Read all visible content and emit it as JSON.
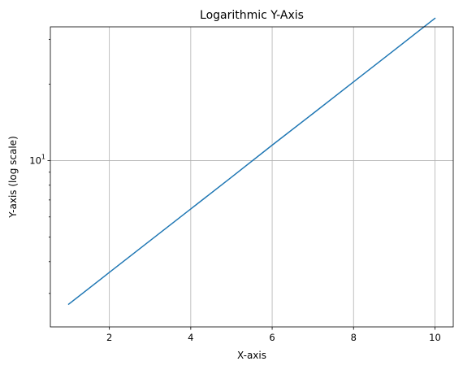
{
  "chart_data": {
    "type": "line",
    "title": "Logarithmic Y-Axis",
    "xlabel": "X-axis",
    "ylabel": "Y-axis (log scale)",
    "xlim": [
      0.55,
      10.45
    ],
    "ylim": [
      2.215,
      33.6
    ],
    "y_scale": "log",
    "grid": true,
    "x_ticks": [
      {
        "value": 2,
        "label": "2"
      },
      {
        "value": 4,
        "label": "4"
      },
      {
        "value": 6,
        "label": "6"
      },
      {
        "value": 8,
        "label": "8"
      },
      {
        "value": 10,
        "label": "10"
      }
    ],
    "y_major_ticks": [
      {
        "value": 10,
        "base": "10",
        "exponent": "1"
      }
    ],
    "y_minor_ticks": [
      3,
      4,
      5,
      6,
      7,
      8,
      9,
      20,
      30
    ],
    "series": [
      {
        "color": "#1f77b4",
        "x": [
          1,
          2,
          3,
          4,
          5,
          6,
          7,
          8,
          9,
          10
        ],
        "y": [
          2.72,
          3.63,
          4.84,
          6.45,
          8.6,
          11.5,
          15.3,
          20.4,
          27.2,
          36.3
        ]
      }
    ]
  }
}
